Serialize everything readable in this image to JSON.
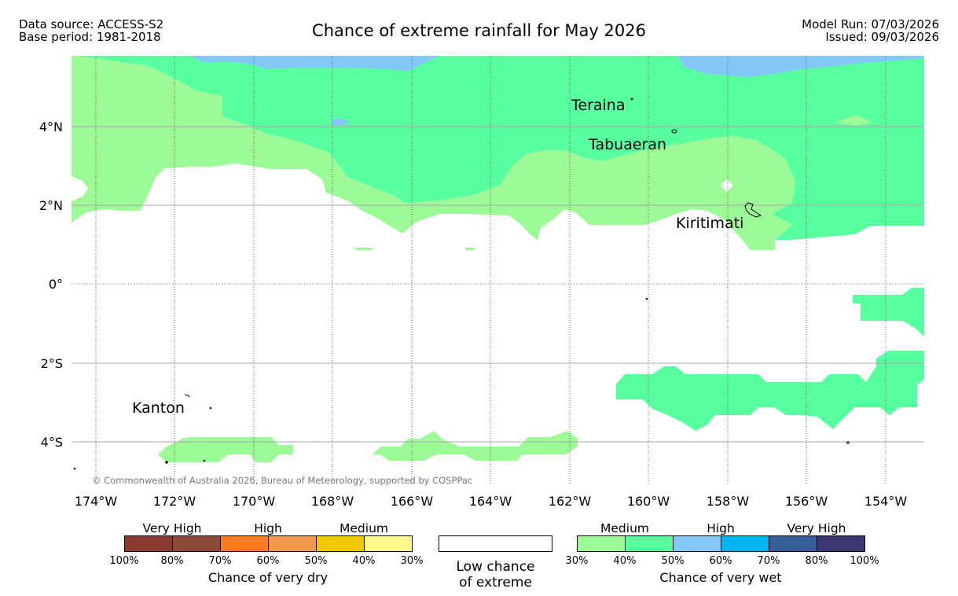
{
  "header": {
    "data_source": "Data source: ACCESS-S2",
    "base_period": "Base period: 1981-2018",
    "title": "Chance of extreme rainfall for May 2026",
    "model_run": "Model Run: 07/03/2026",
    "issued": "Issued: 09/03/2026"
  },
  "map": {
    "lat_labels": [
      "4°N",
      "2°N",
      "0°",
      "2°S",
      "4°S"
    ],
    "lon_labels": [
      "174°W",
      "172°W",
      "170°W",
      "168°W",
      "166°W",
      "164°W",
      "162°W",
      "160°W",
      "158°W",
      "156°W",
      "154°W"
    ],
    "places": [
      "Teraina",
      "Tabuaeran",
      "Kiritimati",
      "Kanton"
    ],
    "copyright": "© Commonwealth of Australia 2026, Bureau of Meteorology, supported by COSPPac",
    "colors": {
      "medium_wet": "#9cfb96",
      "high_wet_40": "#57ff9e",
      "high_wet_50": "#84c8fa"
    }
  },
  "legend": {
    "dry": {
      "headings": [
        "Very High",
        "High",
        "Medium"
      ],
      "colors": [
        "#8b3a32",
        "#8b4a3a",
        "#ff7d1f",
        "#f0994a",
        "#f0c800",
        "#fff88a"
      ],
      "ticks": [
        "100%",
        "80%",
        "70%",
        "60%",
        "50%",
        "40%",
        "30%"
      ],
      "title": "Chance of very dry"
    },
    "low": {
      "line1": "Low chance",
      "line2": "of extreme",
      "color": "#ffffff"
    },
    "wet": {
      "headings": [
        "Medium",
        "High",
        "Very High"
      ],
      "colors": [
        "#9cfb96",
        "#57ff9e",
        "#84c8fa",
        "#00b4f0",
        "#375e98",
        "#3d3872"
      ],
      "ticks": [
        "30%",
        "40%",
        "50%",
        "60%",
        "70%",
        "80%",
        "100%"
      ],
      "title": "Chance of very wet"
    }
  }
}
